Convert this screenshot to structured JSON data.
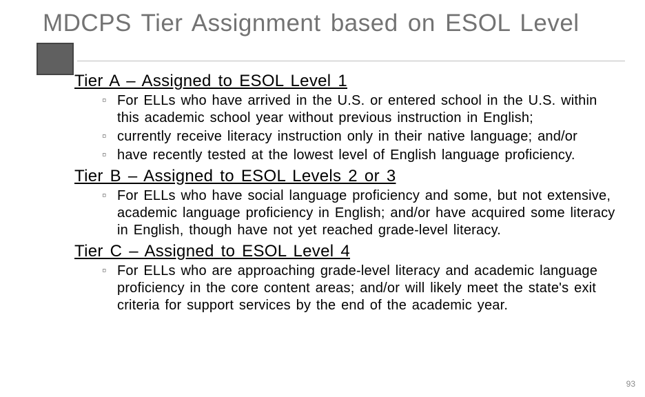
{
  "title": "MDCPS Tier Assignment based on ESOL Level",
  "colors": {
    "title_color": "#737373",
    "accent_fill": "#606060",
    "accent_border": "#444444",
    "divider": "#bdbdbd",
    "bullet_marker": "#6b6b6b",
    "text": "#000000",
    "page_num_color": "#8a8a8a",
    "background": "#ffffff"
  },
  "typography": {
    "title_fontsize": 35,
    "heading_fontsize": 24,
    "body_fontsize": 20,
    "page_num_fontsize": 12,
    "font_family": "Arial"
  },
  "tiers": [
    {
      "heading": "Tier A – Assigned to ESOL Level 1",
      "bullets": [
        "For ELLs who have arrived in the U.S. or entered school in the U.S. within this academic school year without previous instruction in English;",
        "currently receive literacy instruction only in their native language; and/or",
        "have recently tested at the lowest level of English language proficiency."
      ]
    },
    {
      "heading": "Tier B – Assigned to ESOL Levels 2 or 3",
      "bullets": [
        "For ELLs who have social language proficiency and some, but not extensive, academic language proficiency in English; and/or have acquired some literacy in English, though have not yet reached grade-level literacy."
      ]
    },
    {
      "heading": "Tier C – Assigned to ESOL Level 4",
      "bullets": [
        "For ELLs who are approaching grade-level literacy and academic language proficiency in the core content areas; and/or will likely meet the state's exit criteria for support services by the end of the academic year."
      ]
    }
  ],
  "page_number": "93"
}
